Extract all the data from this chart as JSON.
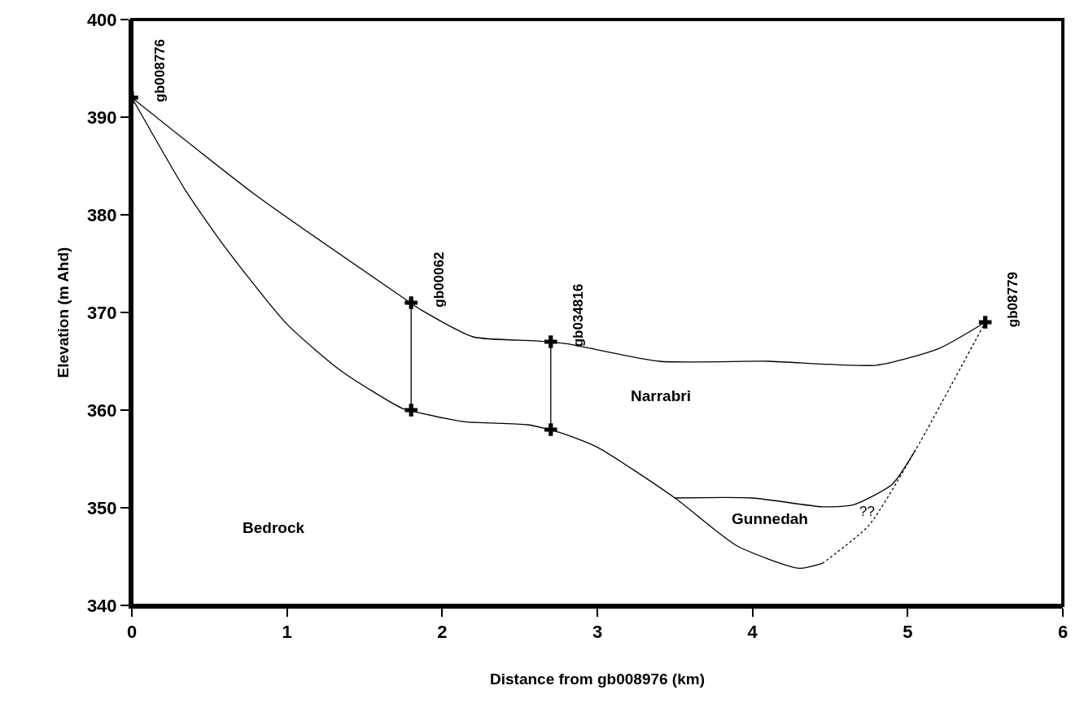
{
  "chart_data": {
    "type": "line",
    "xlabel": "Distance from gb008976 (km)",
    "ylabel": "Elevation (m Ahd)",
    "xlim": [
      0,
      6
    ],
    "xticks": [
      0,
      1,
      2,
      3,
      4,
      5,
      6
    ],
    "ylim": [
      340,
      400
    ],
    "yticks": [
      340,
      350,
      360,
      370,
      380,
      390,
      400
    ],
    "series": [
      {
        "color": "#000000",
        "line_style": "solid",
        "marker": "none",
        "x": [
          0,
          0.8,
          1.74,
          1.86,
          2.2,
          2.6,
          2.8,
          3.4,
          4.1,
          4.8,
          5.2,
          5.5
        ],
        "values": [
          392,
          382,
          371.6,
          370.3,
          367.5,
          367.1,
          366.8,
          365,
          365,
          364.6,
          366.3,
          369
        ]
      },
      {
        "color": "#000000",
        "line_style": "solid",
        "marker": "none",
        "x": [
          0,
          0.35,
          0.6,
          1.0,
          1.35,
          1.74,
          1.86,
          2.15,
          2.55,
          2.76,
          3.0,
          3.5,
          3.9,
          4.3,
          4.45
        ],
        "values": [
          392,
          382.4,
          376.7,
          368.8,
          364,
          360.2,
          359.7,
          358.8,
          358.5,
          357.7,
          356.2,
          351,
          346.1,
          343.8,
          344.3
        ]
      },
      {
        "color": "#000000",
        "line_style": "dotted",
        "marker": "none",
        "x": [
          4.45,
          4.75,
          5.05,
          5.5
        ],
        "values": [
          344.3,
          348.2,
          355.9,
          369
        ]
      },
      {
        "color": "#000000",
        "line_style": "solid",
        "marker": "none",
        "x": [
          3.5,
          4.0,
          4.45,
          4.65,
          4.9,
          5.05
        ],
        "values": [
          351,
          351,
          350.1,
          350.3,
          352.4,
          355.9
        ]
      },
      {
        "name": "gb008776",
        "color": "#000000",
        "line_style": "solid",
        "marker": "cross",
        "x": [
          0
        ],
        "values": [
          392
        ]
      },
      {
        "name": "gb00062",
        "color": "#000000",
        "line_style": "solid",
        "marker": "cross",
        "x": [
          1.8,
          1.8
        ],
        "values": [
          360,
          371
        ]
      },
      {
        "name": "gb034816",
        "color": "#000000",
        "line_style": "solid",
        "marker": "cross",
        "x": [
          2.7,
          2.7
        ],
        "values": [
          358,
          367
        ]
      },
      {
        "name": "gb08779",
        "color": "#000000",
        "line_style": "solid",
        "marker": "cross",
        "x": [
          5.5
        ],
        "values": [
          369
        ]
      }
    ],
    "annotations": [
      "Bedrock",
      "Narrabri",
      "Gunnedah",
      "??"
    ]
  }
}
